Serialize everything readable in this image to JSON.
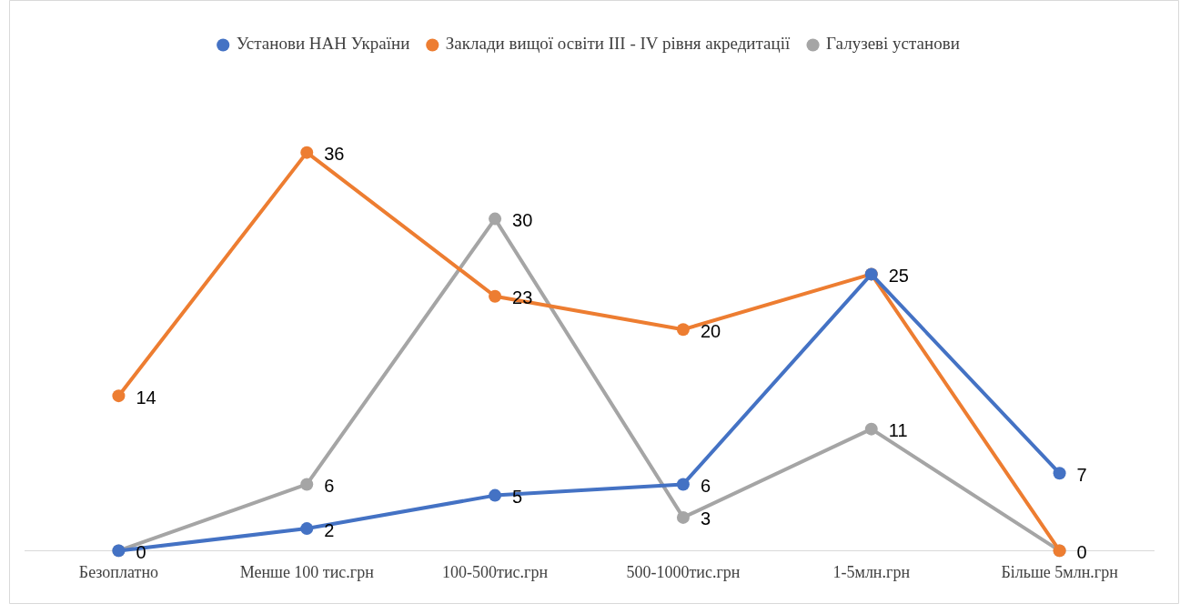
{
  "chart_data": {
    "type": "line",
    "categories": [
      "Безоплатно",
      "Менше 100 тис.грн",
      "100-500тис.грн",
      "500-1000тис.грн",
      "1-5млн.грн",
      "Більше 5млн.грн"
    ],
    "series": [
      {
        "name": "Установи НАН України",
        "color": "#4472c4",
        "values": [
          0,
          2,
          5,
          6,
          25,
          7
        ]
      },
      {
        "name": "Заклади вищої освіти ІІІ - IV рівня акредитації",
        "color": "#ed7d31",
        "values": [
          14,
          36,
          23,
          20,
          25,
          0
        ],
        "value_labels": [
          "14",
          "36",
          "23",
          "20",
          null,
          "0"
        ]
      },
      {
        "name": "Галузеві установи",
        "color": "#a5a5a5",
        "values": [
          0,
          6,
          30,
          3,
          11,
          0
        ],
        "value_labels": [
          null,
          "6",
          "30",
          "3",
          "11",
          null
        ]
      }
    ],
    "data_labels": true,
    "legend": "top",
    "marker": "circle",
    "line_style": "solid",
    "grid": false,
    "tick_labels": "x"
  }
}
